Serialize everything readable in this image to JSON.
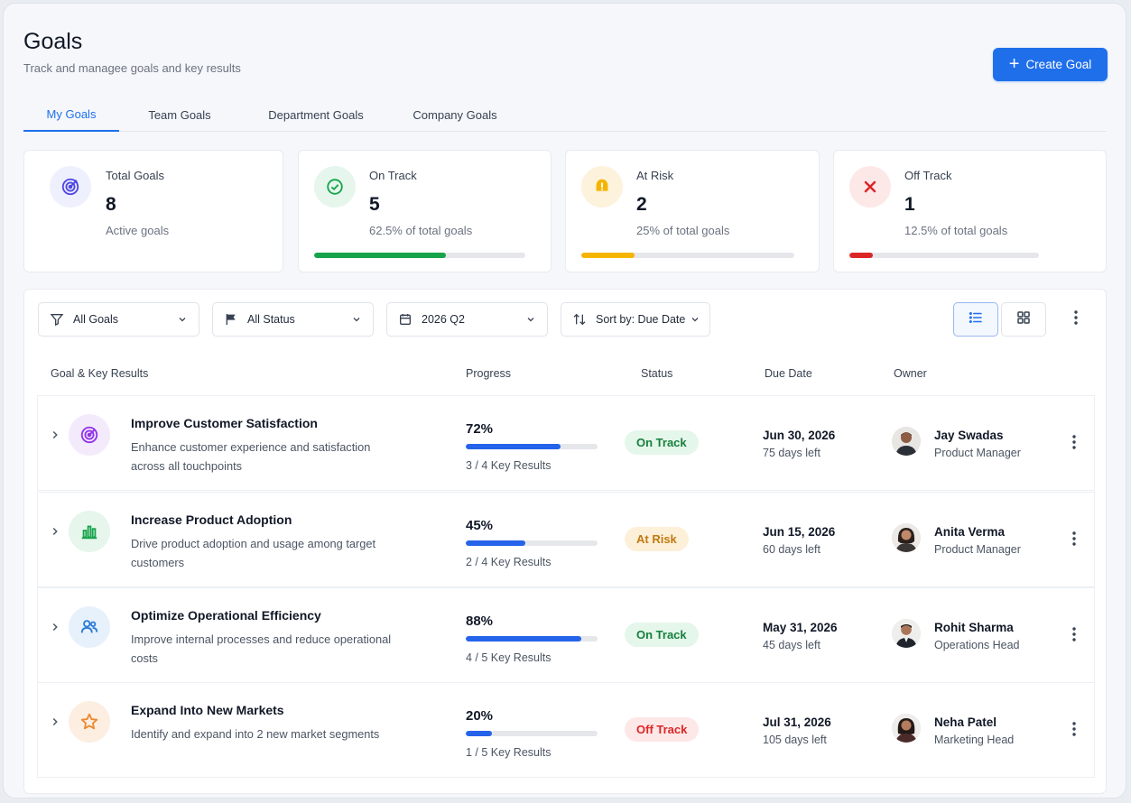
{
  "header": {
    "title": "Goals",
    "subtitle": "Track and managee goals and key results",
    "create_label": "Create Goal"
  },
  "tabs": [
    {
      "label": "My Goals",
      "active": true
    },
    {
      "label": "Team Goals",
      "active": false
    },
    {
      "label": "Department Goals",
      "active": false
    },
    {
      "label": "Company Goals",
      "active": false
    }
  ],
  "stats": [
    {
      "label": "Total Goals",
      "value": "8",
      "sub": "Active goals",
      "icon": "target-icon",
      "color": "#4f46e5"
    },
    {
      "label": "On Track",
      "value": "5",
      "sub": "62.5% of total goals",
      "icon": "check-circle-icon",
      "color": "#16a34a",
      "progress": 0.625
    },
    {
      "label": "At Risk",
      "value": "2",
      "sub": "25% of total goals",
      "icon": "warning-icon",
      "color": "#f5b400",
      "progress": 0.25
    },
    {
      "label": "Off Track",
      "value": "1",
      "sub": "12.5% of total goals",
      "icon": "x-icon",
      "color": "#dc2626",
      "progress": 0.125
    }
  ],
  "filters": {
    "goals": "All Goals",
    "status": "All Status",
    "period": "2026 Q2",
    "sort": "Sort by: Due Date"
  },
  "columns": {
    "goal": "Goal & Key Results",
    "progress": "Progress",
    "status": "Status",
    "due": "Due Date",
    "owner": "Owner"
  },
  "goals": [
    {
      "title": "Improve Customer Satisfaction",
      "desc": "Enhance customer experience and satisfaction across all touchpoints",
      "icon": "target-icon",
      "progress_label": "72%",
      "progress": 0.72,
      "key_results": "3 / 4 Key Results",
      "status": "On Track",
      "due": "Jun 30, 2026",
      "left": "75 days left",
      "owner": "Jay Swadas",
      "role": "Product Manager"
    },
    {
      "title": "Increase Product Adoption",
      "desc": "Drive product adoption and usage among target customers",
      "icon": "bar-chart-icon",
      "progress_label": "45%",
      "progress": 0.45,
      "key_results": "2 / 4 Key Results",
      "status": "At Risk",
      "due": "Jun 15, 2026",
      "left": "60 days left",
      "owner": "Anita Verma",
      "role": "Product Manager"
    },
    {
      "title": "Optimize Operational Efficiency",
      "desc": "Improve internal processes and reduce operational costs",
      "icon": "users-icon",
      "progress_label": "88%",
      "progress": 0.88,
      "key_results": "4 / 5 Key Results",
      "status": "On Track",
      "due": "May 31, 2026",
      "left": "45 days left",
      "owner": "Rohit Sharma",
      "role": "Operations Head"
    },
    {
      "title": "Expand Into New Markets",
      "desc": "Identify and expand into 2 new market segments",
      "icon": "star-icon",
      "progress_label": "20%",
      "progress": 0.2,
      "key_results": "1 / 5 Key Results",
      "status": "Off Track",
      "due": "Jul 31, 2026",
      "left": "105 days left",
      "owner": "Neha Patel",
      "role": "Marketing Head"
    }
  ]
}
